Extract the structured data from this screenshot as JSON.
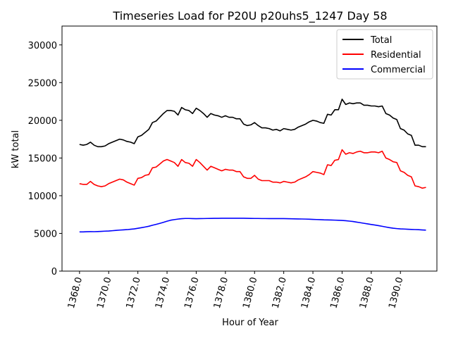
{
  "chart_data": {
    "type": "line",
    "title": "Timeseries Load for P20U p20uhs5_1247  Day 58",
    "xlabel": "Hour of Year",
    "ylabel": "kW total",
    "xlim": [
      1366.8,
      1392.5
    ],
    "ylim": [
      0,
      32500
    ],
    "xticks": [
      1368,
      1370,
      1372,
      1374,
      1376,
      1378,
      1380,
      1382,
      1384,
      1386,
      1388,
      1390
    ],
    "xtick_labels": [
      "1368.0",
      "1370.0",
      "1372.0",
      "1374.0",
      "1376.0",
      "1378.0",
      "1380.0",
      "1382.0",
      "1384.0",
      "1386.0",
      "1388.0",
      "1390.0"
    ],
    "yticks": [
      0,
      5000,
      10000,
      15000,
      20000,
      25000,
      30000
    ],
    "ytick_labels": [
      "0",
      "5000",
      "10000",
      "15000",
      "20000",
      "25000",
      "30000"
    ],
    "legend_position": "top-right",
    "x": [
      1368.0,
      1368.25,
      1368.5,
      1368.75,
      1369.0,
      1369.25,
      1369.5,
      1369.75,
      1370.0,
      1370.25,
      1370.5,
      1370.75,
      1371.0,
      1371.25,
      1371.5,
      1371.75,
      1372.0,
      1372.25,
      1372.5,
      1372.75,
      1373.0,
      1373.25,
      1373.5,
      1373.75,
      1374.0,
      1374.25,
      1374.5,
      1374.75,
      1375.0,
      1375.25,
      1375.5,
      1375.75,
      1376.0,
      1376.25,
      1376.5,
      1376.75,
      1377.0,
      1377.25,
      1377.5,
      1377.75,
      1378.0,
      1378.25,
      1378.5,
      1378.75,
      1379.0,
      1379.25,
      1379.5,
      1379.75,
      1380.0,
      1380.25,
      1380.5,
      1380.75,
      1381.0,
      1381.25,
      1381.5,
      1381.75,
      1382.0,
      1382.25,
      1382.5,
      1382.75,
      1383.0,
      1383.25,
      1383.5,
      1383.75,
      1384.0,
      1384.25,
      1384.5,
      1384.75,
      1385.0,
      1385.25,
      1385.5,
      1385.75,
      1386.0,
      1386.25,
      1386.5,
      1386.75,
      1387.0,
      1387.25,
      1387.5,
      1387.75,
      1388.0,
      1388.25,
      1388.5,
      1388.75,
      1389.0,
      1389.25,
      1389.5,
      1389.75,
      1390.0,
      1390.25,
      1390.5,
      1390.75,
      1391.0,
      1391.25,
      1391.5,
      1391.75
    ],
    "series": [
      {
        "name": "Total",
        "color": "#000000",
        "values": [
          16800,
          16700,
          16800,
          17100,
          16700,
          16500,
          16500,
          16600,
          16900,
          17100,
          17300,
          17500,
          17400,
          17200,
          17100,
          16900,
          17800,
          18000,
          18400,
          18800,
          19700,
          19900,
          20400,
          20900,
          21300,
          21300,
          21200,
          20700,
          21700,
          21400,
          21300,
          20900,
          21600,
          21300,
          20900,
          20400,
          20900,
          20700,
          20600,
          20400,
          20600,
          20400,
          20400,
          20200,
          20200,
          19500,
          19300,
          19400,
          19700,
          19300,
          19000,
          19000,
          18900,
          18700,
          18800,
          18600,
          18900,
          18800,
          18700,
          18800,
          19100,
          19300,
          19500,
          19800,
          20000,
          19900,
          19700,
          19600,
          20800,
          20700,
          21400,
          21400,
          22800,
          22100,
          22300,
          22200,
          22300,
          22300,
          22000,
          22000,
          21900,
          21900,
          21800,
          21900,
          20900,
          20700,
          20300,
          20100,
          18900,
          18700,
          18200,
          18000,
          16700,
          16700,
          16500,
          16500
        ]
      },
      {
        "name": "Residential",
        "color": "#ff0000",
        "values": [
          11600,
          11500,
          11500,
          11900,
          11500,
          11300,
          11200,
          11300,
          11600,
          11800,
          12000,
          12200,
          12100,
          11800,
          11600,
          11400,
          12300,
          12400,
          12700,
          12800,
          13700,
          13800,
          14200,
          14600,
          14800,
          14600,
          14400,
          13900,
          14800,
          14400,
          14300,
          13900,
          14800,
          14400,
          13900,
          13400,
          13900,
          13700,
          13500,
          13300,
          13500,
          13400,
          13400,
          13200,
          13200,
          12500,
          12300,
          12300,
          12700,
          12200,
          12000,
          12000,
          12000,
          11800,
          11800,
          11700,
          11900,
          11800,
          11700,
          11800,
          12100,
          12300,
          12500,
          12800,
          13200,
          13100,
          13000,
          12800,
          14100,
          14000,
          14700,
          14800,
          16100,
          15500,
          15700,
          15600,
          15800,
          15900,
          15700,
          15700,
          15800,
          15800,
          15700,
          15900,
          15000,
          14800,
          14500,
          14400,
          13300,
          13100,
          12700,
          12500,
          11300,
          11200,
          11000,
          11100
        ]
      },
      {
        "name": "Commercial",
        "color": "#0000ff",
        "values": [
          5200,
          5200,
          5220,
          5240,
          5230,
          5250,
          5270,
          5300,
          5320,
          5360,
          5400,
          5440,
          5470,
          5500,
          5550,
          5600,
          5680,
          5760,
          5850,
          5950,
          6080,
          6200,
          6330,
          6470,
          6620,
          6750,
          6830,
          6900,
          6950,
          6980,
          6980,
          6960,
          6950,
          6960,
          6970,
          6980,
          6990,
          7000,
          7000,
          7010,
          7010,
          7010,
          7010,
          7010,
          7010,
          7010,
          7000,
          6990,
          6980,
          6980,
          6970,
          6970,
          6960,
          6960,
          6960,
          6960,
          6960,
          6950,
          6940,
          6930,
          6920,
          6910,
          6900,
          6880,
          6860,
          6840,
          6820,
          6800,
          6790,
          6780,
          6760,
          6740,
          6720,
          6680,
          6630,
          6580,
          6500,
          6420,
          6340,
          6260,
          6180,
          6110,
          6030,
          5940,
          5850,
          5760,
          5690,
          5640,
          5600,
          5580,
          5550,
          5530,
          5510,
          5490,
          5460,
          5430
        ]
      }
    ]
  }
}
